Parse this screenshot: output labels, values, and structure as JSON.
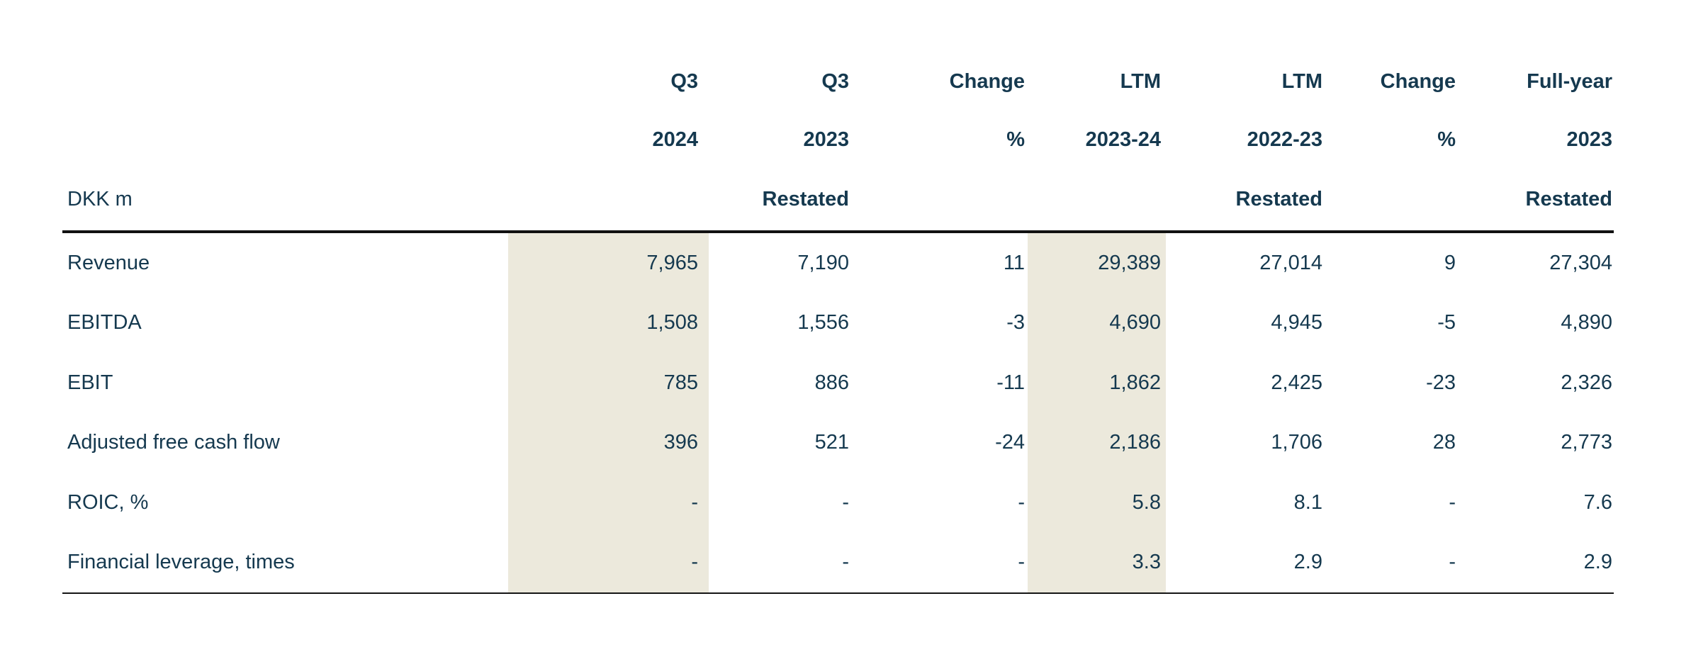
{
  "table": {
    "unit_label": "DKK m",
    "columns": [
      {
        "line1": "Q3",
        "line2": "2024",
        "line3": "",
        "highlight": true
      },
      {
        "line1": "Q3",
        "line2": "2023",
        "line3": "Restated",
        "highlight": false
      },
      {
        "line1": "Change",
        "line2": "%",
        "line3": "",
        "highlight": false
      },
      {
        "line1": "LTM",
        "line2": "2023-24",
        "line3": "",
        "highlight": true
      },
      {
        "line1": "LTM",
        "line2": "2022-23",
        "line3": "Restated",
        "highlight": false
      },
      {
        "line1": "Change",
        "line2": "%",
        "line3": "",
        "highlight": false
      },
      {
        "line1": "Full-year",
        "line2": "2023",
        "line3": "Restated",
        "highlight": false
      }
    ],
    "rows": [
      {
        "label": "Revenue",
        "values": [
          "7,965",
          "7,190",
          "11",
          "29,389",
          "27,014",
          "9",
          "27,304"
        ]
      },
      {
        "label": "EBITDA",
        "values": [
          "1,508",
          "1,556",
          "-3",
          "4,690",
          "4,945",
          "-5",
          "4,890"
        ]
      },
      {
        "label": "EBIT",
        "values": [
          "785",
          "886",
          "-11",
          "1,862",
          "2,425",
          "-23",
          "2,326"
        ]
      },
      {
        "label": "Adjusted free cash flow",
        "values": [
          "396",
          "521",
          "-24",
          "2,186",
          "1,706",
          "28",
          "2,773"
        ]
      },
      {
        "label": "ROIC, %",
        "values": [
          "-",
          "-",
          "-",
          "5.8",
          "8.1",
          "-",
          "7.6"
        ]
      },
      {
        "label": "Financial leverage, times",
        "values": [
          "-",
          "-",
          "-",
          "3.3",
          "2.9",
          "-",
          "2.9"
        ]
      }
    ],
    "colors": {
      "text_navy": "#15394f",
      "highlight_beige": "#ece9dc",
      "top_rule": "#111111",
      "bottom_rule": "#151515",
      "background": "#ffffff"
    }
  }
}
